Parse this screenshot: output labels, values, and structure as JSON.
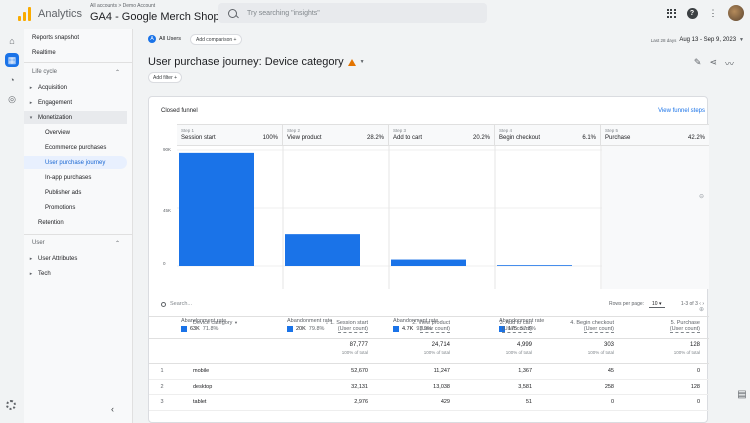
{
  "header": {
    "app_name": "Analytics",
    "breadcrumb": "All accounts > Demo Account",
    "property_name": "GA4 - Google Merch Shop",
    "search_placeholder": "Try searching \"insights\""
  },
  "sidebar": {
    "reports_snapshot": "Reports snapshot",
    "realtime": "Realtime",
    "lifecycle_heading": "Life cycle",
    "acquisition": "Acquisition",
    "engagement": "Engagement",
    "monetization": "Monetization",
    "overview": "Overview",
    "ecommerce_purchases": "Ecommerce purchases",
    "user_purchase_journey": "User purchase journey",
    "in_app_purchases": "In-app purchases",
    "publisher_ads": "Publisher ads",
    "promotions": "Promotions",
    "retention": "Retention",
    "user_heading": "User",
    "user_attributes": "User Attributes",
    "tech": "Tech"
  },
  "toolbar": {
    "all_users": "All Users",
    "all_users_badge": "A",
    "add_comparison": "Add comparison +",
    "date_label": "Last 28 days",
    "date_range": "Aug 13 - Sep 9, 2023",
    "title": "User purchase journey: Device category",
    "add_filter": "Add filter +"
  },
  "funnel": {
    "label": "Closed funnel",
    "view_steps": "View funnel steps",
    "steps": [
      {
        "n": "Step 1",
        "name": "Session start",
        "pct": "100%"
      },
      {
        "n": "Step 2",
        "name": "View product",
        "pct": "28.2%"
      },
      {
        "n": "Step 3",
        "name": "Add to cart",
        "pct": "20.2%"
      },
      {
        "n": "Step 4",
        "name": "Begin checkout",
        "pct": "6.1%"
      },
      {
        "n": "Step 5",
        "name": "Purchase",
        "pct": "42.2%"
      }
    ],
    "abandonment_label": "Abandonment rate",
    "abandonment": [
      {
        "count": "63K",
        "rate": "71.8%"
      },
      {
        "count": "20K",
        "rate": "79.8%"
      },
      {
        "count": "4.7K",
        "rate": "93.9%"
      },
      {
        "count": "175",
        "rate": "57.8%"
      }
    ]
  },
  "chart_data": {
    "type": "bar",
    "categories": [
      "Session start",
      "View product",
      "Add to cart",
      "Begin checkout"
    ],
    "values": [
      87777,
      24714,
      4999,
      303
    ],
    "yticks": [
      "90K",
      "45K",
      "0"
    ],
    "ylim": [
      0,
      90000
    ],
    "color": "#1a73e8"
  },
  "table": {
    "search_placeholder": "Search...",
    "rows_per_page_label": "Rows per page:",
    "rows_per_page": "10",
    "range": "1-3 of 3",
    "dimension_header": "Device category",
    "columns": [
      {
        "title": "1. Session start",
        "sub": "(User count)"
      },
      {
        "title": "2. View product",
        "sub": "(User count)"
      },
      {
        "title": "3. Add to cart",
        "sub": "(User count)"
      },
      {
        "title": "4. Begin checkout",
        "sub": "(User count)"
      },
      {
        "title": "5. Purchase",
        "sub": "(User count)"
      }
    ],
    "totals": [
      "87,777",
      "24,714",
      "4,999",
      "303",
      "128"
    ],
    "totals_sub": "100% of total",
    "rows": [
      {
        "idx": "1",
        "device": "mobile",
        "values": [
          "52,670",
          "11,247",
          "1,367",
          "45",
          "0"
        ]
      },
      {
        "idx": "2",
        "device": "desktop",
        "values": [
          "32,131",
          "13,038",
          "3,581",
          "258",
          "128"
        ]
      },
      {
        "idx": "3",
        "device": "tablet",
        "values": [
          "2,976",
          "429",
          "51",
          "0",
          "0"
        ]
      }
    ]
  }
}
